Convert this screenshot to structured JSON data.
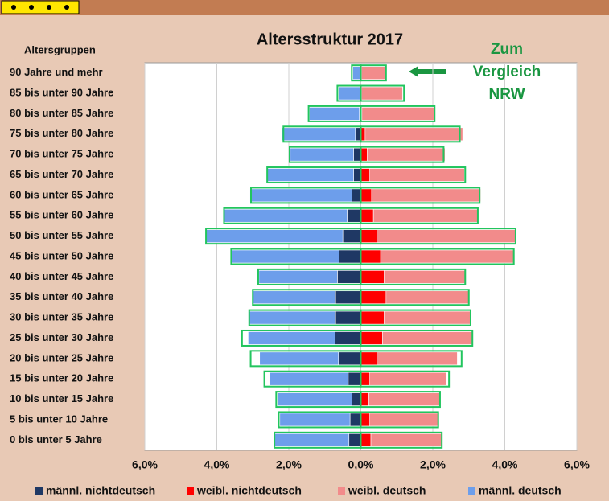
{
  "chart_data": {
    "type": "pyramid",
    "title": "Altersstruktur 2017",
    "category_header": "Altersgruppen",
    "categories": [
      "90 Jahre und mehr",
      "85 bis unter 90 Jahre",
      "80 bis unter 85 Jahre",
      "75 bis unter 80 Jahre",
      "70 bis unter 75 Jahre",
      "65 bis unter 70 Jahre",
      "60 bis unter 65 Jahre",
      "55 bis unter 60 Jahre",
      "50 bis unter 55 Jahre",
      "45 bis unter 50 Jahre",
      "40 bis unter 45 Jahre",
      "35 bis unter 40 Jahre",
      "30 bis unter 35 Jahre",
      "25 bis unter 30 Jahre",
      "20 bis unter 25 Jahre",
      "15 bis unter 20 Jahre",
      "10 bis unter 15 Jahre",
      "5 bis unter 10 Jahre",
      "0 bis unter 5 Jahre"
    ],
    "series": [
      {
        "name": "männl. nichtdeutsch",
        "color": "#1f3864",
        "side": "left",
        "values": [
          0.02,
          0.02,
          0.04,
          0.15,
          0.2,
          0.2,
          0.25,
          0.38,
          0.5,
          0.6,
          0.65,
          0.7,
          0.7,
          0.72,
          0.62,
          0.35,
          0.25,
          0.3,
          0.33
        ]
      },
      {
        "name": "weibl. nichtdeutsch",
        "color": "#ff0000",
        "side": "right",
        "values": [
          0.02,
          0.02,
          0.03,
          0.12,
          0.18,
          0.25,
          0.3,
          0.35,
          0.45,
          0.55,
          0.65,
          0.7,
          0.65,
          0.6,
          0.45,
          0.25,
          0.22,
          0.25,
          0.28
        ]
      },
      {
        "name": "weibl. deutsch",
        "color": "#f28b8b",
        "side": "right",
        "values": [
          0.65,
          1.14,
          2.02,
          2.71,
          2.16,
          2.63,
          3.03,
          2.89,
          3.84,
          3.7,
          2.25,
          2.3,
          2.39,
          2.5,
          2.23,
          2.12,
          1.98,
          1.89,
          1.97
        ]
      },
      {
        "name": "männl. deutsch",
        "color": "#6d9eeb",
        "side": "left",
        "values": [
          0.2,
          0.6,
          1.39,
          2.04,
          1.76,
          2.39,
          2.83,
          3.44,
          3.81,
          3.02,
          2.18,
          2.29,
          2.4,
          2.41,
          2.19,
          2.19,
          2.07,
          1.95,
          2.06
        ]
      }
    ],
    "comparison": {
      "label_lines": [
        "Zum",
        "Vergleich",
        "NRW"
      ],
      "color": "#22c55e",
      "left": [
        0.25,
        0.65,
        1.45,
        2.15,
        1.98,
        2.6,
        3.05,
        3.8,
        4.3,
        3.6,
        2.85,
        3.0,
        3.1,
        3.3,
        3.06,
        2.68,
        2.35,
        2.28,
        2.4
      ],
      "right": [
        0.7,
        1.2,
        2.05,
        2.75,
        2.3,
        2.9,
        3.3,
        3.25,
        4.3,
        4.25,
        2.9,
        3.0,
        3.05,
        3.1,
        2.8,
        2.45,
        2.2,
        2.15,
        2.25
      ]
    },
    "xlim": [
      -6,
      6
    ],
    "xticks": [
      {
        "value": -6,
        "label": "6,0%"
      },
      {
        "value": -4,
        "label": "4,0%"
      },
      {
        "value": -2,
        "label": "2,0%"
      },
      {
        "value": 0,
        "label": "0,0%"
      },
      {
        "value": 2,
        "label": "2,0%"
      },
      {
        "value": 4,
        "label": "4,0%"
      },
      {
        "value": 6,
        "label": "6,0%"
      }
    ],
    "grid": true
  }
}
